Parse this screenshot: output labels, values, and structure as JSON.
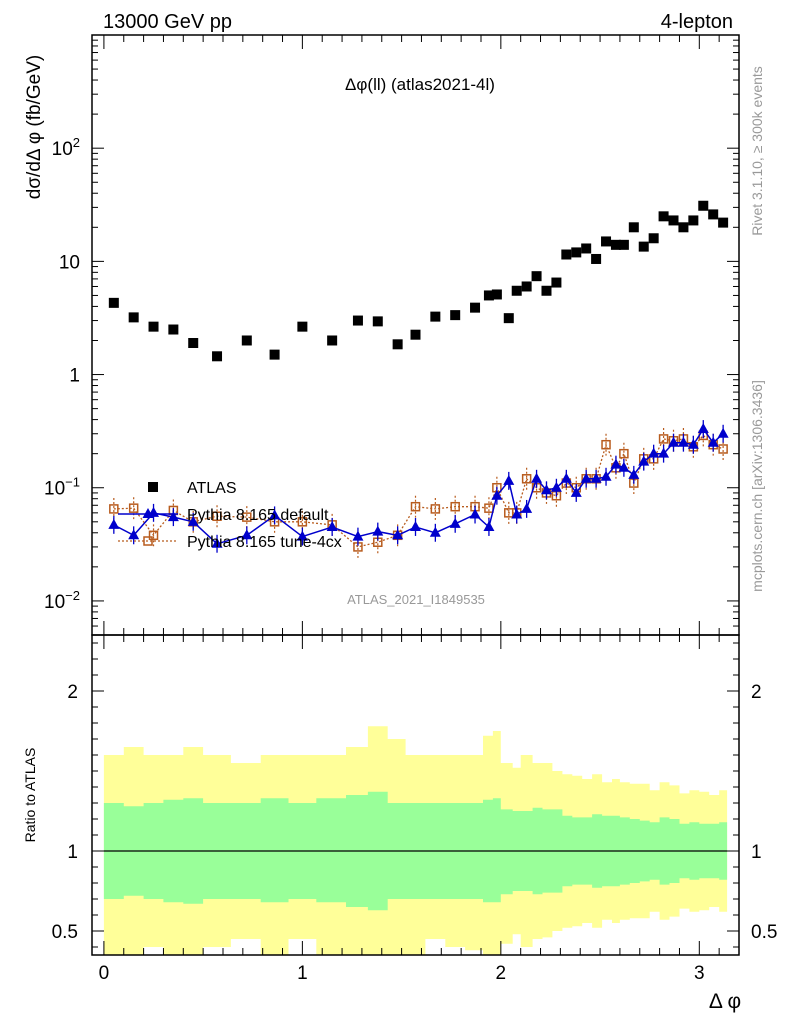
{
  "header": {
    "left": "13000 GeV pp",
    "right": "4-lepton"
  },
  "side_labels": {
    "rivet": "Rivet 3.1.10, ≥ 300k events",
    "mcplots": "mcplots.cern.ch [arXiv:1306.3436]"
  },
  "colors": {
    "data": "#000000",
    "pythia_default": "#0000cc",
    "pythia_tune": "#b85c1e",
    "band_inner": "#99ff99",
    "band_outer": "#ffff99",
    "watermark": "#999999"
  },
  "chart_data": [
    {
      "type": "scatter",
      "panel": "main",
      "title": "Δφ(ll) (atlas2021-4l)",
      "ylabel": "dσ/dΔ φ (fb/GeV)",
      "yscale": "log",
      "ylim": [
        0.005,
        1000
      ],
      "xlim": [
        -0.06,
        3.2
      ],
      "watermark": "ATLAS_2021_I1849535",
      "y_ticks": [
        {
          "value": 0.01,
          "base": "10",
          "exp": "−2"
        },
        {
          "value": 0.1,
          "base": "10",
          "exp": "−1"
        },
        {
          "value": 1,
          "label": "1"
        },
        {
          "value": 10,
          "label": "10"
        },
        {
          "value": 100,
          "base": "10",
          "exp": "2"
        }
      ],
      "legend": [
        {
          "label": "ATLAS",
          "series": "ATLAS"
        },
        {
          "label": "Pythia 8.165 default",
          "series": "Pythia 8.165 default"
        },
        {
          "label": "Pythia 8.165 tune-4cx",
          "series": "Pythia 8.165 tune-4cx"
        }
      ],
      "legend_position": "middle-left",
      "x": [
        0.05,
        0.15,
        0.25,
        0.35,
        0.45,
        0.57,
        0.72,
        0.86,
        1.0,
        1.15,
        1.28,
        1.38,
        1.48,
        1.57,
        1.67,
        1.77,
        1.87,
        1.94,
        1.98,
        2.04,
        2.08,
        2.13,
        2.18,
        2.23,
        2.28,
        2.33,
        2.38,
        2.43,
        2.48,
        2.53,
        2.58,
        2.62,
        2.67,
        2.72,
        2.77,
        2.82,
        2.87,
        2.92,
        2.97,
        3.02,
        3.07,
        3.12
      ],
      "series": [
        {
          "name": "ATLAS",
          "marker": "square",
          "values": [
            4.3,
            3.2,
            2.65,
            2.5,
            1.9,
            1.45,
            2.0,
            1.5,
            2.65,
            2.0,
            3.0,
            2.95,
            1.85,
            2.25,
            3.25,
            3.35,
            3.9,
            5.0,
            5.1,
            3.15,
            5.5,
            6.0,
            7.4,
            5.5,
            6.5,
            11.5,
            12.0,
            13.0,
            10.5,
            15.0,
            14.0,
            14.0,
            20.0,
            13.5,
            16.0,
            25.0,
            23.0,
            20.0,
            23.0,
            31.0,
            26.0,
            22.0
          ]
        },
        {
          "name": "Pythia 8.165 default",
          "marker": "triangle",
          "values": [
            0.047,
            0.038,
            0.06,
            0.055,
            0.05,
            0.032,
            0.038,
            0.057,
            0.037,
            0.045,
            0.037,
            0.041,
            0.038,
            0.045,
            0.04,
            0.048,
            0.058,
            0.045,
            0.085,
            0.115,
            0.058,
            0.065,
            0.12,
            0.095,
            0.1,
            0.12,
            0.09,
            0.12,
            0.12,
            0.125,
            0.16,
            0.15,
            0.13,
            0.17,
            0.2,
            0.2,
            0.25,
            0.25,
            0.24,
            0.33,
            0.25,
            0.3
          ]
        },
        {
          "name": "Pythia 8.165 tune-4cx",
          "marker": "open-square",
          "values": [
            0.065,
            0.066,
            0.038,
            0.063,
            0.05,
            0.056,
            0.055,
            0.05,
            0.05,
            0.047,
            0.03,
            0.033,
            0.038,
            0.068,
            0.065,
            0.068,
            0.068,
            0.066,
            0.1,
            0.06,
            0.06,
            0.12,
            0.1,
            0.09,
            0.085,
            0.11,
            0.1,
            0.12,
            0.12,
            0.24,
            0.15,
            0.2,
            0.11,
            0.18,
            0.18,
            0.27,
            0.26,
            0.27,
            0.23,
            0.29,
            0.24,
            0.22
          ]
        }
      ]
    },
    {
      "type": "area",
      "panel": "ratio",
      "ylabel": "Ratio to ATLAS",
      "xlabel": "Δ φ",
      "ylim": [
        0.35,
        2.35
      ],
      "xlim": [
        -0.06,
        3.2
      ],
      "y_ticks": [
        {
          "value": 0.5,
          "label": "0.5"
        },
        {
          "value": 1,
          "label": "1"
        },
        {
          "value": 2,
          "label": "2"
        }
      ],
      "x_ticks": [
        {
          "value": 0,
          "label": "0"
        },
        {
          "value": 1,
          "label": "1"
        },
        {
          "value": 2,
          "label": "2"
        },
        {
          "value": 3,
          "label": "3"
        }
      ],
      "bin_edges": [
        0.0,
        0.1,
        0.2,
        0.3,
        0.4,
        0.5,
        0.64,
        0.79,
        0.93,
        1.07,
        1.22,
        1.33,
        1.43,
        1.52,
        1.62,
        1.72,
        1.82,
        1.91,
        1.96,
        2.0,
        2.06,
        2.1,
        2.16,
        2.21,
        2.26,
        2.31,
        2.36,
        2.41,
        2.46,
        2.51,
        2.56,
        2.6,
        2.65,
        2.7,
        2.75,
        2.8,
        2.85,
        2.9,
        2.95,
        3.0,
        3.05,
        3.1,
        3.14
      ],
      "inner_upper": [
        1.3,
        1.28,
        1.3,
        1.32,
        1.33,
        1.3,
        1.3,
        1.33,
        1.3,
        1.33,
        1.35,
        1.37,
        1.3,
        1.3,
        1.3,
        1.3,
        1.3,
        1.32,
        1.33,
        1.26,
        1.25,
        1.25,
        1.27,
        1.26,
        1.26,
        1.22,
        1.21,
        1.21,
        1.23,
        1.22,
        1.22,
        1.21,
        1.2,
        1.19,
        1.18,
        1.21,
        1.2,
        1.17,
        1.18,
        1.17,
        1.17,
        1.18
      ],
      "inner_lower": [
        0.7,
        0.72,
        0.7,
        0.68,
        0.67,
        0.7,
        0.7,
        0.68,
        0.7,
        0.68,
        0.65,
        0.63,
        0.7,
        0.7,
        0.7,
        0.7,
        0.7,
        0.68,
        0.68,
        0.73,
        0.75,
        0.75,
        0.73,
        0.74,
        0.74,
        0.78,
        0.79,
        0.79,
        0.77,
        0.78,
        0.78,
        0.79,
        0.8,
        0.81,
        0.82,
        0.79,
        0.8,
        0.83,
        0.82,
        0.83,
        0.83,
        0.82
      ],
      "outer_upper": [
        1.6,
        1.65,
        1.6,
        1.6,
        1.65,
        1.6,
        1.55,
        1.6,
        1.6,
        1.6,
        1.65,
        1.78,
        1.7,
        1.6,
        1.6,
        1.6,
        1.6,
        1.72,
        1.75,
        1.55,
        1.52,
        1.6,
        1.55,
        1.55,
        1.5,
        1.48,
        1.47,
        1.45,
        1.48,
        1.43,
        1.45,
        1.43,
        1.42,
        1.42,
        1.38,
        1.43,
        1.41,
        1.36,
        1.38,
        1.37,
        1.35,
        1.38
      ],
      "outer_lower": [
        0.35,
        0.35,
        0.4,
        0.35,
        0.35,
        0.4,
        0.45,
        0.35,
        0.45,
        0.35,
        0.35,
        0.3,
        0.35,
        0.35,
        0.45,
        0.4,
        0.38,
        0.3,
        0.3,
        0.42,
        0.48,
        0.4,
        0.45,
        0.46,
        0.5,
        0.52,
        0.53,
        0.55,
        0.52,
        0.57,
        0.55,
        0.57,
        0.58,
        0.58,
        0.62,
        0.57,
        0.59,
        0.64,
        0.62,
        0.63,
        0.65,
        0.62
      ],
      "reference_line": 1
    }
  ]
}
